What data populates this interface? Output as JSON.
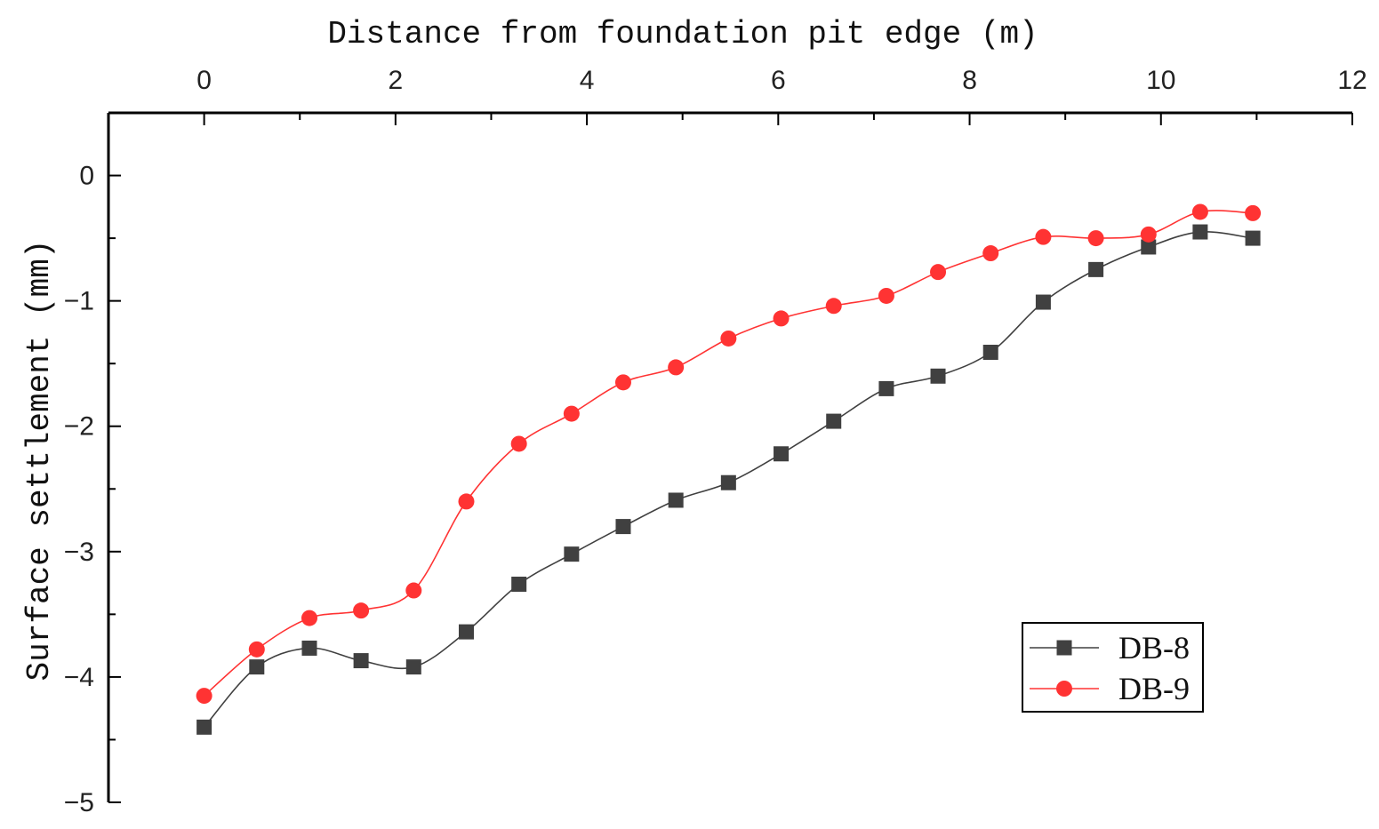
{
  "chart_data": {
    "type": "line",
    "title": "",
    "xlabel": "Distance from foundation pit edge (m)",
    "ylabel": "Surface settlement (mm)",
    "xlim": [
      -1,
      12
    ],
    "ylim": [
      -5,
      0.5
    ],
    "x_ticks": [
      0,
      2,
      4,
      6,
      8,
      10,
      12
    ],
    "y_ticks": [
      0,
      -1,
      -2,
      -3,
      -4,
      -5
    ],
    "x_axis_position": "top",
    "grid": false,
    "legend_position": "bottom-right",
    "series": [
      {
        "name": "DB-8",
        "color": "#404040",
        "marker": "square",
        "x": [
          0,
          0.55,
          1.1,
          1.64,
          2.19,
          2.74,
          3.29,
          3.84,
          4.38,
          4.93,
          5.48,
          6.03,
          6.58,
          7.13,
          7.67,
          8.22,
          8.77,
          9.32,
          9.87,
          10.41,
          10.96
        ],
        "y": [
          -4.4,
          -3.92,
          -3.77,
          -3.87,
          -3.92,
          -3.64,
          -3.26,
          -3.02,
          -2.8,
          -2.59,
          -2.45,
          -2.22,
          -1.96,
          -1.7,
          -1.6,
          -1.41,
          -1.01,
          -0.75,
          -0.57,
          -0.45,
          -0.5
        ]
      },
      {
        "name": "DB-9",
        "color": "#ff3333",
        "marker": "circle",
        "x": [
          0,
          0.55,
          1.1,
          1.64,
          2.19,
          2.74,
          3.29,
          3.84,
          4.38,
          4.93,
          5.48,
          6.03,
          6.58,
          7.13,
          7.67,
          8.22,
          8.77,
          9.32,
          9.87,
          10.41,
          10.96
        ],
        "y": [
          -4.15,
          -3.78,
          -3.53,
          -3.47,
          -3.31,
          -2.6,
          -2.14,
          -1.9,
          -1.65,
          -1.53,
          -1.3,
          -1.14,
          -1.04,
          -0.96,
          -0.77,
          -0.62,
          -0.49,
          -0.5,
          -0.47,
          -0.29,
          -0.3
        ]
      }
    ]
  }
}
